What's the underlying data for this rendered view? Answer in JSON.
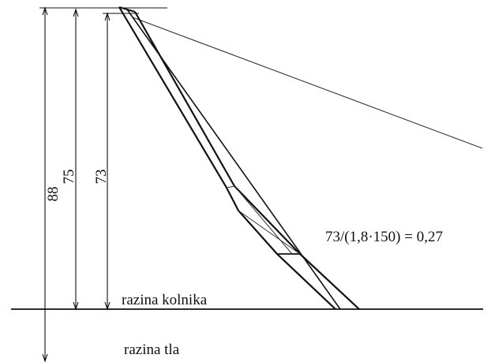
{
  "dimensions": {
    "outer": "88",
    "middle": "75",
    "inner": "73"
  },
  "labels": {
    "road_level": "razina kolnika",
    "ground_level": "razina tla"
  },
  "formula": "73/(1,8·150) = 0,27",
  "colors": {
    "line": "#111111",
    "thin_line": "#333333",
    "background": "#ffffff"
  }
}
